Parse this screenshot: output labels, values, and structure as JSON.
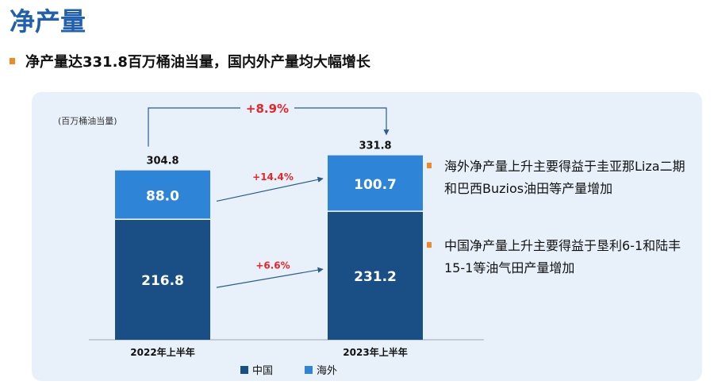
{
  "header": {
    "title": "净产量",
    "subtitle": "净产量达331.8百万桶油当量，国内外产量均大幅增长"
  },
  "chart_data": {
    "type": "bar",
    "stacked": true,
    "unit_label": "(百万桶油当量)",
    "categories": [
      "2022年上半年",
      "2023年上半年"
    ],
    "series": [
      {
        "name": "中国",
        "color": "#1a4f86",
        "values": [
          216.8,
          231.2
        ]
      },
      {
        "name": "海外",
        "color": "#2e84d6",
        "values": [
          88.0,
          100.7
        ]
      }
    ],
    "value_labels": {
      "中国": [
        "216.8",
        "231.2"
      ],
      "海外": [
        "88.0",
        "100.7"
      ]
    },
    "totals": [
      304.8,
      331.8
    ],
    "total_labels": [
      "304.8",
      "331.8"
    ],
    "growth": {
      "total": "+8.9%",
      "海外": "+14.4%",
      "中国": "+6.6%"
    },
    "legend_position": "bottom",
    "grid": false
  },
  "notes": [
    "海外净产量上升主要得益于圭亚那Liza二期和巴西Buzios油田等产量增加",
    "中国净产量上升主要得益于垦利6-1和陆丰15-1等油气田产量增加"
  ]
}
